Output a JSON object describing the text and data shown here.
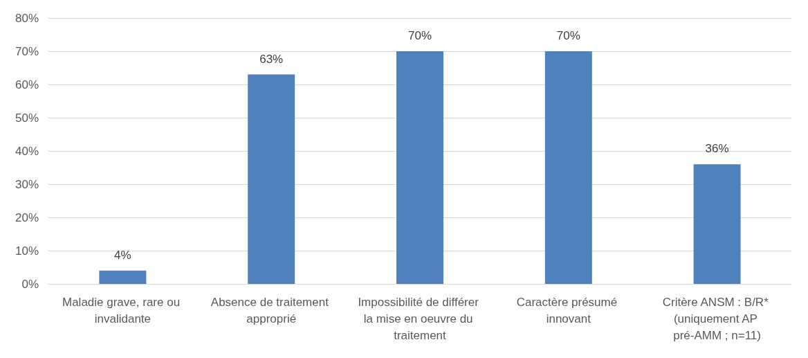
{
  "chart_data": {
    "type": "bar",
    "categories": [
      "Maladie grave, rare ou invalidante",
      "Absence de traitement approprié",
      "Impossibilité de différer la mise en oeuvre du traitement",
      "Caractère présumé innovant",
      "Critère ANSM : B/R* (uniquement AP pré-AMM ; n=11)"
    ],
    "values": [
      4,
      63,
      70,
      70,
      36
    ],
    "value_labels": [
      "4%",
      "63%",
      "70%",
      "70%",
      "36%"
    ],
    "color": "#4f81bd",
    "ylim": [
      0,
      80
    ],
    "yticks": [
      {
        "value": 0,
        "label": "0%"
      },
      {
        "value": 10,
        "label": "10%"
      },
      {
        "value": 20,
        "label": "20%"
      },
      {
        "value": 30,
        "label": "30%"
      },
      {
        "value": 40,
        "label": "40%"
      },
      {
        "value": 50,
        "label": "50%"
      },
      {
        "value": 60,
        "label": "60%"
      },
      {
        "value": 70,
        "label": "70%"
      },
      {
        "value": 80,
        "label": "80%"
      }
    ],
    "grid": "y"
  }
}
